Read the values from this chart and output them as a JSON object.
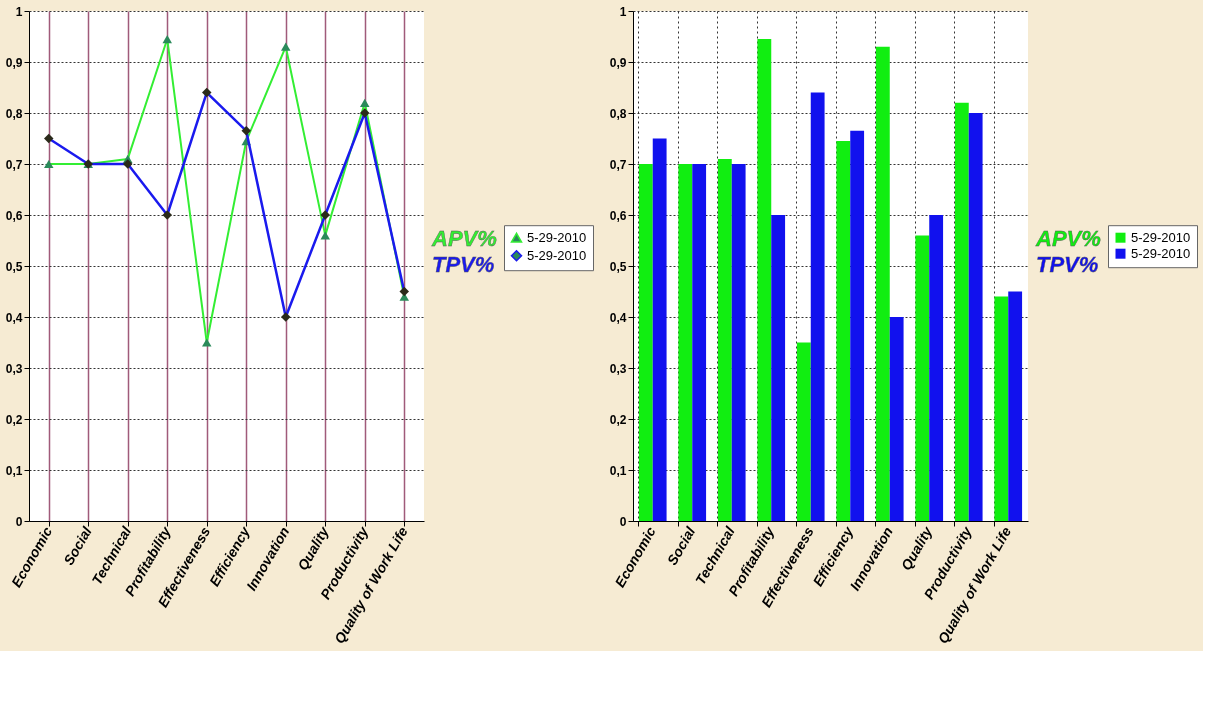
{
  "chart_data": [
    {
      "type": "line",
      "categories": [
        "Economic",
        "Social",
        "Technical",
        "Profitability",
        "Effectiveness",
        "Efficiency",
        "Innovation",
        "Quality",
        "Productivity",
        "Quality of Work Life"
      ],
      "series": [
        {
          "name": "5-29-2010",
          "color": "#33ee33",
          "marker": "triangle",
          "values": [
            0.7,
            0.7,
            0.71,
            0.945,
            0.35,
            0.745,
            0.93,
            0.56,
            0.82,
            0.44
          ]
        },
        {
          "name": "5-29-2010",
          "color": "#1a1aee",
          "marker": "diamond",
          "values": [
            0.75,
            0.7,
            0.7,
            0.6,
            0.84,
            0.765,
            0.4,
            0.6,
            0.8,
            0.45
          ]
        }
      ],
      "ylim": [
        0,
        1
      ],
      "yticks": [
        0,
        {
          "value": 0.1,
          "label": "0,1"
        },
        {
          "value": 0.2,
          "label": "0,2"
        },
        {
          "value": 0.3,
          "label": "0,3"
        },
        {
          "value": 0.4,
          "label": "0,4"
        },
        {
          "value": 0.5,
          "label": "0,5"
        },
        {
          "value": 0.6,
          "label": "0,6"
        },
        {
          "value": 0.7,
          "label": "0,7"
        },
        {
          "value": 0.8,
          "label": "0,8"
        },
        {
          "value": 0.9,
          "label": "0,9"
        },
        1
      ],
      "annotations": [
        "APV%",
        "TPV%"
      ],
      "grid": true,
      "legend": "right",
      "line_style": "solid"
    },
    {
      "type": "bar",
      "categories": [
        "Economic",
        "Social",
        "Technical",
        "Profitability",
        "Effectiveness",
        "Efficiency",
        "Innovation",
        "Quality",
        "Productivity",
        "Quality of Work Life"
      ],
      "series": [
        {
          "name": "5-29-2010",
          "color": "#11ee11",
          "values": [
            0.7,
            0.7,
            0.71,
            0.945,
            0.35,
            0.745,
            0.93,
            0.56,
            0.82,
            0.44
          ]
        },
        {
          "name": "5-29-2010",
          "color": "#1111ee",
          "values": [
            0.75,
            0.7,
            0.7,
            0.6,
            0.84,
            0.765,
            0.4,
            0.6,
            0.8,
            0.45
          ]
        }
      ],
      "ylim": [
        0,
        1
      ],
      "yticks": [
        0,
        {
          "value": 0.1,
          "label": "0,1"
        },
        {
          "value": 0.2,
          "label": "0,2"
        },
        {
          "value": 0.3,
          "label": "0,3"
        },
        {
          "value": 0.4,
          "label": "0,4"
        },
        {
          "value": 0.5,
          "label": "0,5"
        },
        {
          "value": 0.6,
          "label": "0,6"
        },
        {
          "value": 0.7,
          "label": "0,7"
        },
        {
          "value": 0.8,
          "label": "0,8"
        },
        {
          "value": 0.9,
          "label": "0,9"
        },
        1
      ],
      "annotations": [
        "APV%",
        "TPV%"
      ],
      "grid": true,
      "legend": "right"
    }
  ]
}
